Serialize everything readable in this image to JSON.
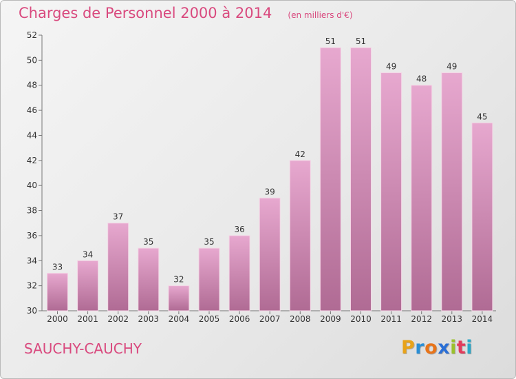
{
  "header": {
    "title": "Charges de Personnel 2000 à 2014",
    "unit_note": "(en milliers d'€)"
  },
  "footer": {
    "city": "SAUCHY-CAUCHY",
    "logo_letters": [
      "P",
      "r",
      "o",
      "x",
      "i",
      "t",
      "i"
    ],
    "logo_colors": [
      "#e8a31a",
      "#2a8fd6",
      "#e8741a",
      "#2a6fd6",
      "#9bc12d",
      "#e23c5c",
      "#29a8c9"
    ]
  },
  "colors": {
    "bar_top": "#e7a8cf",
    "bar_bottom": "#b06b94",
    "accent": "#d9497e"
  },
  "chart_data": {
    "type": "bar",
    "categories": [
      "2000",
      "2001",
      "2002",
      "2003",
      "2004",
      "2005",
      "2006",
      "2007",
      "2008",
      "2009",
      "2010",
      "2011",
      "2012",
      "2013",
      "2014"
    ],
    "values": [
      33,
      34,
      37,
      35,
      32,
      35,
      36,
      39,
      42,
      51,
      51,
      49,
      48,
      49,
      45
    ],
    "title": "Charges de Personnel 2000 à 2014",
    "ylim": [
      30,
      52
    ],
    "yticks": [
      30,
      32,
      34,
      36,
      38,
      40,
      42,
      44,
      46,
      48,
      50,
      52
    ],
    "grid": false,
    "legend": "none"
  }
}
